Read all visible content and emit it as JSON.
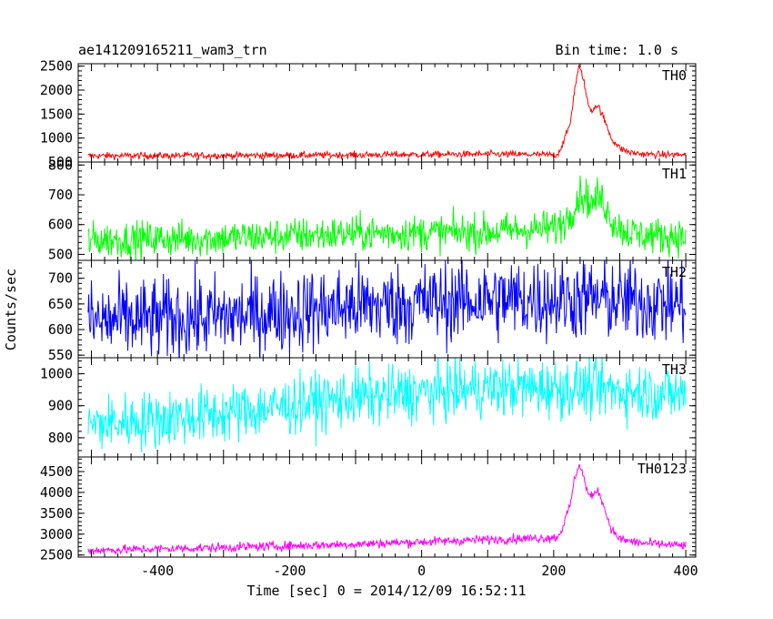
{
  "chart_data": {
    "type": "line",
    "title": "ae141209165211_wam3_trn",
    "subtitle": "Bin time: 1.0 s",
    "xlabel": "Time [sec] 0 = 2014/12/09 16:52:11",
    "ylabel": "Counts/sec",
    "xlim": [
      -520,
      415
    ],
    "xticks": [
      -400,
      -200,
      0,
      200,
      400
    ],
    "panels": [
      {
        "name": "TH0",
        "color": "#ff0000",
        "ylim": [
          500,
          2550
        ],
        "yticks": [
          500,
          1000,
          1500,
          2000,
          2500
        ],
        "baseline": [
          [
            -505,
            630
          ],
          [
            -200,
            640
          ],
          [
            100,
            665
          ],
          [
            205,
            650
          ],
          [
            212,
            820
          ],
          [
            225,
            1300
          ],
          [
            232,
            2050
          ],
          [
            238,
            2480
          ],
          [
            244,
            2300
          ],
          [
            252,
            1700
          ],
          [
            258,
            1560
          ],
          [
            263,
            1680
          ],
          [
            268,
            1660
          ],
          [
            276,
            1400
          ],
          [
            288,
            980
          ],
          [
            300,
            790
          ],
          [
            315,
            700
          ],
          [
            340,
            660
          ],
          [
            400,
            650
          ]
        ],
        "noise": 35
      },
      {
        "name": "TH1",
        "color": "#00ff00",
        "ylim": [
          480,
          810
        ],
        "yticks": [
          500,
          600,
          700,
          800
        ],
        "baseline": [
          [
            -505,
            548
          ],
          [
            -300,
            555
          ],
          [
            -100,
            570
          ],
          [
            100,
            575
          ],
          [
            205,
            590
          ],
          [
            218,
            615
          ],
          [
            232,
            665
          ],
          [
            240,
            705
          ],
          [
            250,
            690
          ],
          [
            258,
            665
          ],
          [
            266,
            695
          ],
          [
            275,
            680
          ],
          [
            288,
            615
          ],
          [
            305,
            580
          ],
          [
            330,
            565
          ],
          [
            400,
            560
          ]
        ],
        "noise": 30
      },
      {
        "name": "TH2",
        "color": "#0000ff",
        "ylim": [
          545,
          735
        ],
        "yticks": [
          550,
          600,
          650,
          700
        ],
        "baseline": [
          [
            -505,
            615
          ],
          [
            -300,
            625
          ],
          [
            -100,
            645
          ],
          [
            100,
            658
          ],
          [
            250,
            660
          ],
          [
            400,
            650
          ]
        ],
        "noise": 40
      },
      {
        "name": "TH3",
        "color": "#00ffff",
        "ylim": [
          740,
          1050
        ],
        "yticks": [
          800,
          900,
          1000
        ],
        "baseline": [
          [
            -505,
            840
          ],
          [
            -300,
            875
          ],
          [
            -100,
            925
          ],
          [
            100,
            955
          ],
          [
            250,
            955
          ],
          [
            400,
            935
          ]
        ],
        "noise": 45
      },
      {
        "name": "TH0123",
        "color": "#ff00ff",
        "ylim": [
          2450,
          4850
        ],
        "yticks": [
          2500,
          3000,
          3500,
          4000,
          4500
        ],
        "baseline": [
          [
            -505,
            2610
          ],
          [
            -300,
            2680
          ],
          [
            -100,
            2760
          ],
          [
            100,
            2870
          ],
          [
            205,
            2920
          ],
          [
            212,
            3100
          ],
          [
            225,
            3700
          ],
          [
            232,
            4350
          ],
          [
            238,
            4680
          ],
          [
            244,
            4450
          ],
          [
            252,
            3960
          ],
          [
            258,
            3880
          ],
          [
            263,
            4050
          ],
          [
            270,
            3980
          ],
          [
            278,
            3550
          ],
          [
            288,
            3100
          ],
          [
            300,
            2880
          ],
          [
            330,
            2790
          ],
          [
            400,
            2720
          ]
        ],
        "noise": 55
      }
    ]
  }
}
